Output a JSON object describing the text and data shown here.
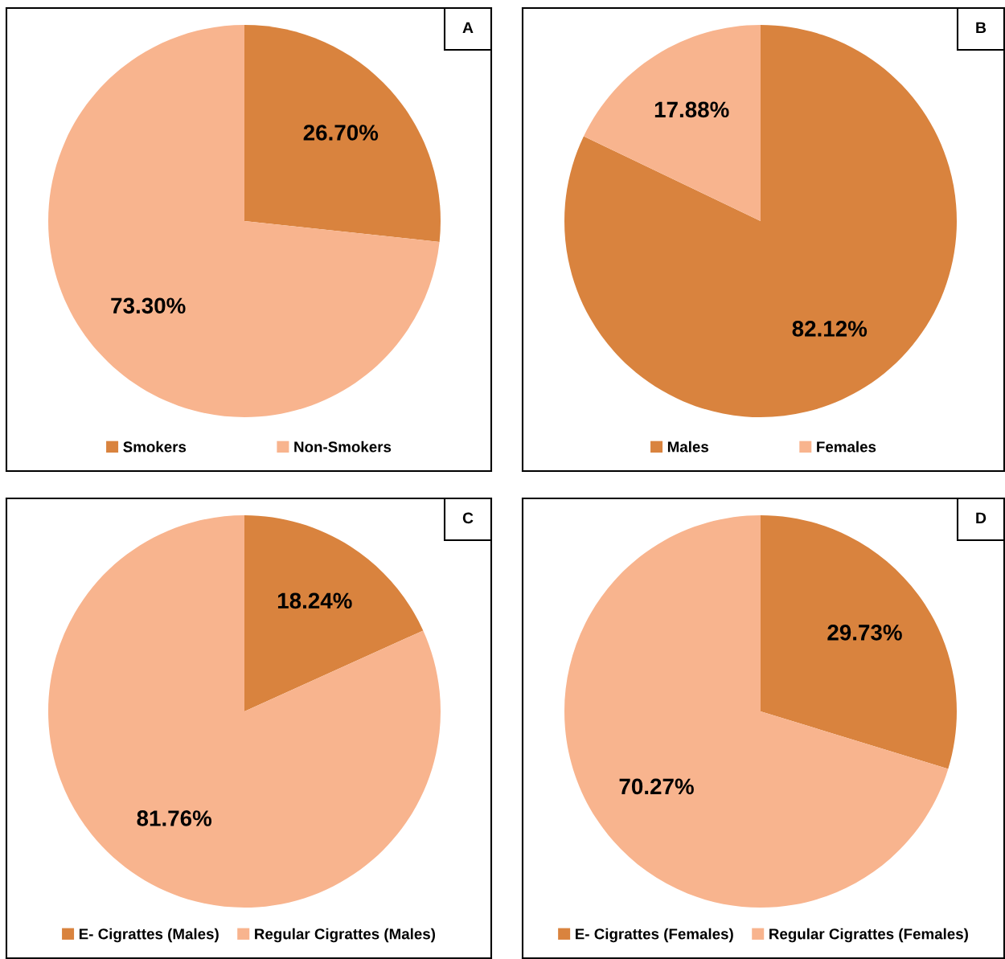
{
  "chart_data": [
    {
      "type": "pie",
      "categories": [
        "Smokers",
        "Non-Smokers"
      ],
      "values": [
        26.7,
        73.3
      ],
      "colors": [
        "#d9833e",
        "#f8b48e"
      ],
      "value_labels": [
        "26.70%",
        "73.30%"
      ],
      "legend": "bottom",
      "annotations": [
        "A"
      ]
    },
    {
      "type": "pie",
      "categories": [
        "Males",
        "Females"
      ],
      "values": [
        82.12,
        17.88
      ],
      "colors": [
        "#d9833e",
        "#f8b48e"
      ],
      "value_labels": [
        "82.12%",
        "17.88%"
      ],
      "legend": "bottom",
      "annotations": [
        "B"
      ]
    },
    {
      "type": "pie",
      "categories": [
        "E- Cigrattes (Males)",
        "Regular Cigrattes (Males)"
      ],
      "values": [
        18.24,
        81.76
      ],
      "colors": [
        "#d9833e",
        "#f8b48e"
      ],
      "value_labels": [
        "18.24%",
        "81.76%"
      ],
      "legend": "bottom",
      "annotations": [
        "C"
      ]
    },
    {
      "type": "pie",
      "categories": [
        "E- Cigrattes (Females)",
        "Regular Cigrattes (Females)"
      ],
      "values": [
        29.73,
        70.27
      ],
      "colors": [
        "#d9833e",
        "#f8b48e"
      ],
      "value_labels": [
        "29.73%",
        "70.27%"
      ],
      "legend": "bottom",
      "annotations": [
        "D"
      ]
    }
  ]
}
